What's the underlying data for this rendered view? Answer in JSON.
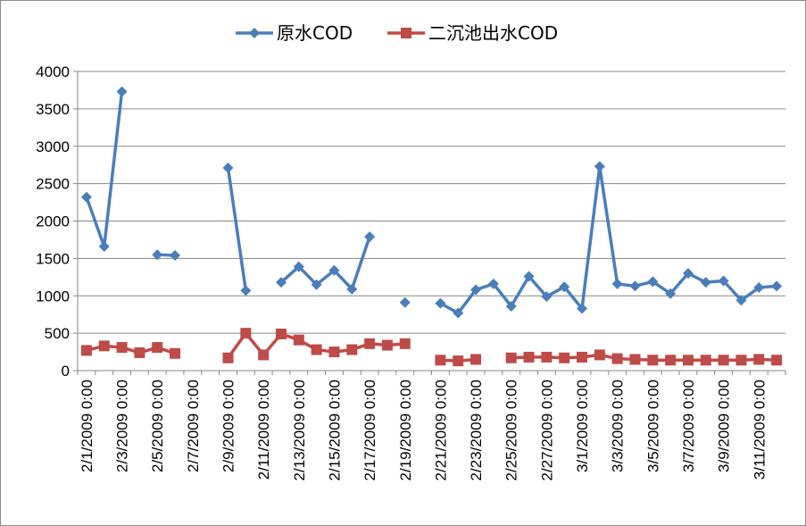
{
  "chart_data": {
    "type": "line",
    "title": "",
    "xlabel": "",
    "ylabel": "",
    "ylim": [
      0,
      4000
    ],
    "yticks": [
      0,
      500,
      1000,
      1500,
      2000,
      2500,
      3000,
      3500,
      4000
    ],
    "ytick_labels": [
      "0",
      "500",
      "1000",
      "1500",
      "2000",
      "2500",
      "3000",
      "3500",
      "4000"
    ],
    "grid": "horizontal",
    "legend_position": "top",
    "categories": [
      "2/1/2009 0:00",
      "2/2/2009 0:00",
      "2/3/2009 0:00",
      "2/4/2009 0:00",
      "2/5/2009 0:00",
      "2/6/2009 0:00",
      "2/7/2009 0:00",
      "2/8/2009 0:00",
      "2/9/2009 0:00",
      "2/10/2009 0:00",
      "2/11/2009 0:00",
      "2/12/2009 0:00",
      "2/13/2009 0:00",
      "2/14/2009 0:00",
      "2/15/2009 0:00",
      "2/16/2009 0:00",
      "2/17/2009 0:00",
      "2/18/2009 0:00",
      "2/19/2009 0:00",
      "2/20/2009 0:00",
      "2/21/2009 0:00",
      "2/22/2009 0:00",
      "2/23/2009 0:00",
      "2/24/2009 0:00",
      "2/25/2009 0:00",
      "2/26/2009 0:00",
      "2/27/2009 0:00",
      "2/28/2009 0:00",
      "3/1/2009 0:00",
      "3/2/2009 0:00",
      "3/3/2009 0:00",
      "3/4/2009 0:00",
      "3/5/2009 0:00",
      "3/6/2009 0:00",
      "3/7/2009 0:00",
      "3/8/2009 0:00",
      "3/9/2009 0:00",
      "3/10/2009 0:00",
      "3/11/2009 0:00",
      "3/12/2009 0:00"
    ],
    "xtick_labels": [
      "2/1/2009 0:00",
      "2/3/2009 0:00",
      "2/5/2009 0:00",
      "2/7/2009 0:00",
      "2/9/2009 0:00",
      "2/11/2009 0:00",
      "2/13/2009 0:00",
      "2/15/2009 0:00",
      "2/17/2009 0:00",
      "2/19/2009 0:00",
      "2/21/2009 0:00",
      "2/23/2009 0:00",
      "2/25/2009 0:00",
      "2/27/2009 0:00",
      "3/1/2009 0:00",
      "3/3/2009 0:00",
      "3/5/2009 0:00",
      "3/7/2009 0:00",
      "3/9/2009 0:00",
      "3/11/2009 0:00"
    ],
    "series": [
      {
        "name": "原水COD",
        "color": "#4a7ebb",
        "marker": "diamond",
        "values": [
          2320,
          1660,
          3730,
          null,
          1550,
          1540,
          null,
          null,
          2710,
          1070,
          null,
          1180,
          1390,
          1150,
          1340,
          1090,
          1790,
          null,
          910,
          null,
          900,
          770,
          1080,
          1160,
          860,
          1260,
          990,
          1120,
          830,
          2730,
          1160,
          1130,
          1190,
          1030,
          1300,
          1180,
          1200,
          940,
          1110,
          1130
        ]
      },
      {
        "name": "二沉池出水COD",
        "color": "#be4b48",
        "marker": "square",
        "values": [
          270,
          330,
          310,
          240,
          310,
          230,
          null,
          null,
          170,
          500,
          210,
          490,
          410,
          280,
          250,
          280,
          360,
          340,
          360,
          null,
          140,
          130,
          150,
          null,
          170,
          180,
          180,
          170,
          180,
          210,
          160,
          150,
          140,
          140,
          140,
          140,
          140,
          140,
          150,
          140
        ]
      }
    ]
  }
}
